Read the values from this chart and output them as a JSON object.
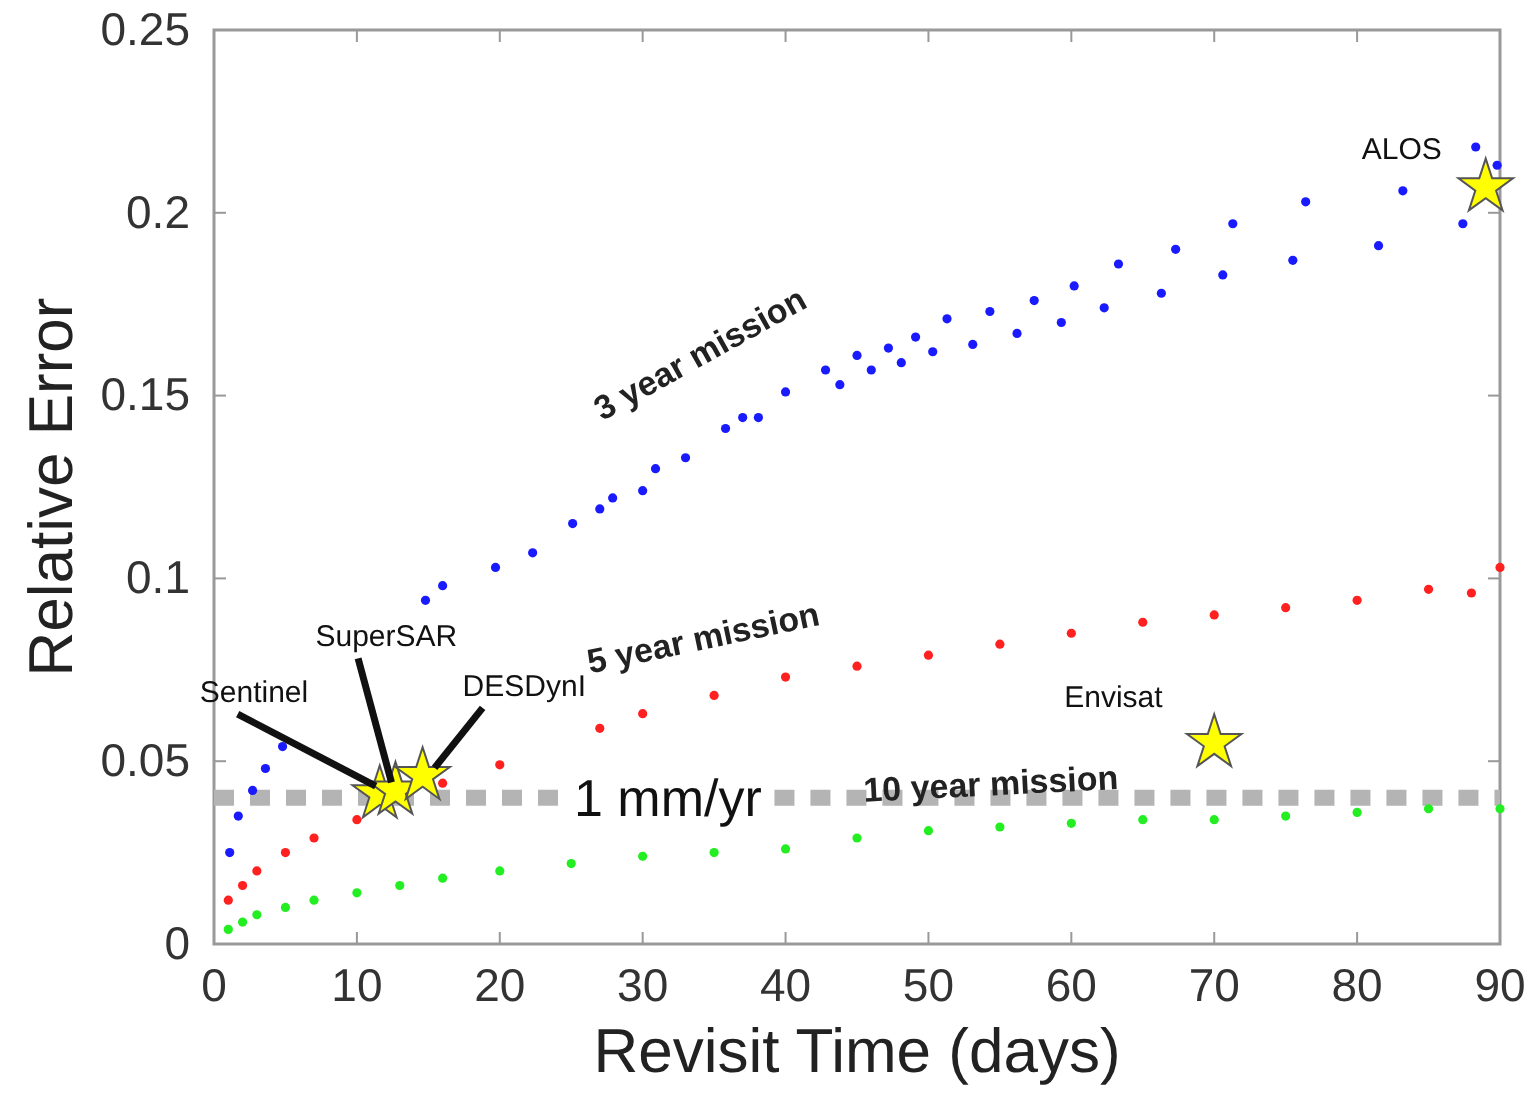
{
  "chart_data": {
    "type": "scatter",
    "xlabel": "Revisit Time (days)",
    "ylabel": "Relative Error",
    "xlim": [
      0,
      90
    ],
    "ylim": [
      0,
      0.25
    ],
    "xticks": [
      0,
      10,
      20,
      30,
      40,
      50,
      60,
      70,
      80,
      90
    ],
    "yticks": [
      0,
      0.05,
      0.1,
      0.15,
      0.2,
      0.25
    ],
    "grid": false,
    "marker": "circle",
    "series": [
      {
        "name": "3 year mission",
        "color": "#1a1aff",
        "x": [
          1.1,
          1.7,
          2.7,
          3.6,
          4.8,
          14.8,
          16,
          19.7,
          22.3,
          25.1,
          27,
          27.9,
          30,
          30.9,
          33,
          35.8,
          37,
          38.1,
          40,
          42.8,
          43.8,
          45,
          46,
          47.2,
          48.1,
          49.1,
          50.3,
          51.3,
          53.1,
          54.3,
          56.2,
          57.4,
          59.3,
          60.2,
          62.3,
          63.3,
          66.3,
          67.3,
          70.6,
          71.3,
          75.5,
          76.4,
          81.5,
          83.2,
          87.4,
          88.3,
          89.8
        ],
        "values": [
          0.025,
          0.035,
          0.042,
          0.048,
          0.054,
          0.094,
          0.098,
          0.103,
          0.107,
          0.115,
          0.119,
          0.122,
          0.124,
          0.13,
          0.133,
          0.141,
          0.144,
          0.144,
          0.151,
          0.157,
          0.153,
          0.161,
          0.157,
          0.163,
          0.159,
          0.166,
          0.162,
          0.171,
          0.164,
          0.173,
          0.167,
          0.176,
          0.17,
          0.18,
          0.174,
          0.186,
          0.178,
          0.19,
          0.183,
          0.197,
          0.187,
          0.203,
          0.191,
          0.206,
          0.197,
          0.218,
          0.213
        ]
      },
      {
        "name": "5 year mission",
        "color": "#ff2020",
        "x": [
          1,
          2,
          3,
          5,
          7,
          10,
          16,
          20,
          27,
          30,
          35,
          40,
          45,
          50,
          55,
          60,
          65,
          70,
          75,
          80,
          85,
          88,
          90
        ],
        "values": [
          0.012,
          0.016,
          0.02,
          0.025,
          0.029,
          0.034,
          0.044,
          0.049,
          0.059,
          0.063,
          0.068,
          0.073,
          0.076,
          0.079,
          0.082,
          0.085,
          0.088,
          0.09,
          0.092,
          0.094,
          0.097,
          0.096,
          0.103
        ]
      },
      {
        "name": "10 year mission",
        "color": "#22ee22",
        "x": [
          1,
          2,
          3,
          5,
          7,
          10,
          13,
          16,
          20,
          25,
          30,
          35,
          40,
          45,
          50,
          55,
          60,
          65,
          70,
          75,
          80,
          85,
          90
        ],
        "values": [
          0.004,
          0.006,
          0.008,
          0.01,
          0.012,
          0.014,
          0.016,
          0.018,
          0.02,
          0.022,
          0.024,
          0.025,
          0.026,
          0.029,
          0.031,
          0.032,
          0.033,
          0.034,
          0.034,
          0.035,
          0.036,
          0.037,
          0.037
        ]
      },
      {
        "type": "scatter",
        "marker": "star",
        "color": "#ffff00",
        "x": [
          11.6,
          12.7,
          14.6,
          70,
          89
        ],
        "values": [
          0.041,
          0.042,
          0.046,
          0.055,
          0.207
        ]
      }
    ],
    "ref_lines": [
      {
        "axis": "y",
        "value": 0.04,
        "label": "1 mm/yr",
        "color": "#b4b4b4",
        "line_style": "dashed"
      }
    ],
    "annotations": [
      {
        "text": "Sentinel",
        "x": 11.6,
        "y": 0.041
      },
      {
        "text": "SuperSAR",
        "x": 12.7,
        "y": 0.042
      },
      {
        "text": "DESDynI",
        "x": 14.6,
        "y": 0.046
      },
      {
        "text": "Envisat",
        "x": 70,
        "y": 0.055
      },
      {
        "text": "ALOS",
        "x": 89,
        "y": 0.207
      }
    ]
  }
}
